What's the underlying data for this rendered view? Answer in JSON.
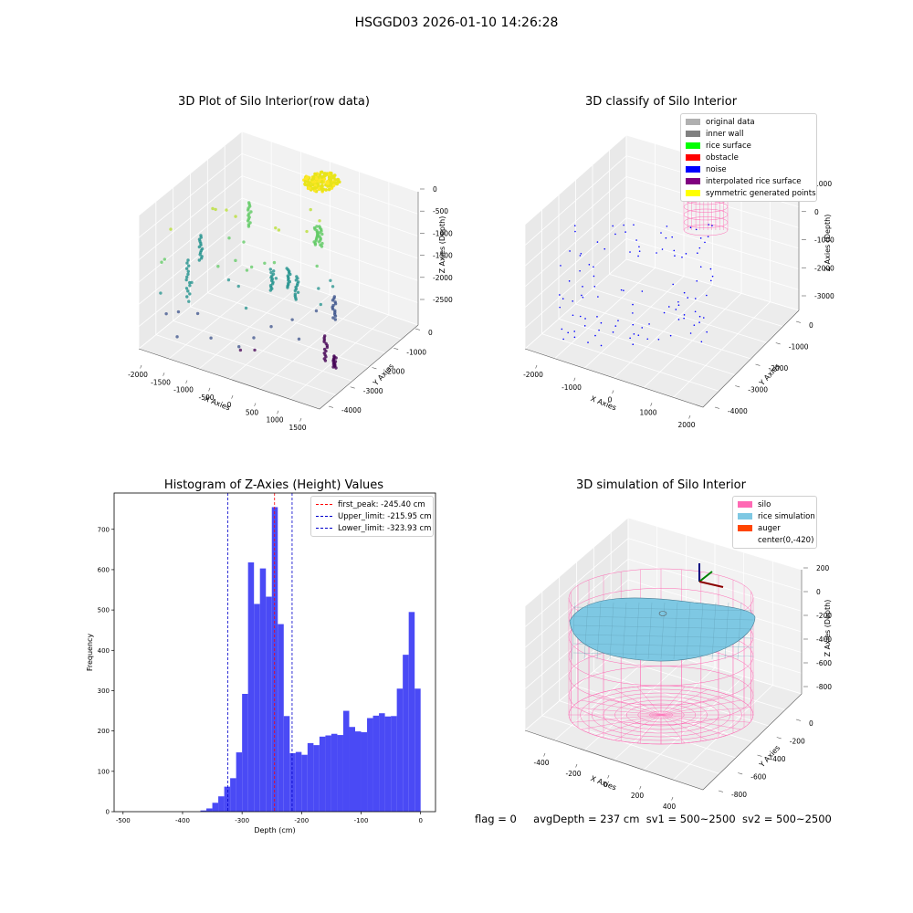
{
  "figure": {
    "suptitle": "HSGGD03 2026-01-10 14:26:28",
    "footer": {
      "flag": "flag = 0",
      "avg": "avgDepth = 237 cm",
      "sv1": "sv1 = 500~2500",
      "sv2": "sv2 = 500~2500"
    }
  },
  "chart_data": [
    {
      "type": "scatter",
      "projection": "3d",
      "title": "3D Plot of Silo Interior(row data)",
      "xlabel": "X Axies",
      "ylabel": "Y Axies",
      "zlabel": "Z Axies (Depth)",
      "xticks": [
        "-2000",
        "-1500",
        "-1000",
        "-500",
        "0",
        "500",
        "1000",
        "1500"
      ],
      "yticks": [
        "0",
        "-1000",
        "-2000",
        "-3000",
        "-4000"
      ],
      "zticks": [
        "0",
        "-500",
        "-1000",
        "-1500",
        "-2000",
        "-2500"
      ],
      "colormap": "viridis"
    },
    {
      "type": "scatter",
      "projection": "3d",
      "title": "3D classify of Silo Interior",
      "xlabel": "X Axies",
      "ylabel": "Y Axies",
      "zlabel": "Z Axies (Depth)",
      "xticks": [
        "-2000",
        "-1000",
        "0",
        "1000",
        "2000"
      ],
      "yticks": [
        "0",
        "-1000",
        "-2000",
        "-3000",
        "-4000"
      ],
      "zticks": [
        "1000",
        "0",
        "-1000",
        "-2000",
        "-3000"
      ],
      "legend": [
        {
          "label": "original data",
          "color": "#b0b0b0"
        },
        {
          "label": "inner wall",
          "color": "#808080"
        },
        {
          "label": "rice surface",
          "color": "#00ff00"
        },
        {
          "label": "obstacle",
          "color": "#ff0000"
        },
        {
          "label": "noise",
          "color": "#0000ff"
        },
        {
          "label": "interpolated rice surface",
          "color": "#800080"
        },
        {
          "label": "symmetric generated points",
          "color": "#ffff00"
        }
      ]
    },
    {
      "type": "bar",
      "title": "Histogram of Z-Axies (Height) Values",
      "xlabel": "Depth (cm)",
      "ylabel": "Frequency",
      "xlim": [
        -515,
        25
      ],
      "ylim": [
        0,
        790
      ],
      "xticks": [
        -500,
        -400,
        -300,
        -200,
        -100,
        0
      ],
      "yticks": [
        0,
        100,
        200,
        300,
        400,
        500,
        600,
        700
      ],
      "bar_color": "#4a4af5",
      "bin_width": 10,
      "bins": [
        [
          -360,
          3
        ],
        [
          -350,
          8
        ],
        [
          -340,
          22
        ],
        [
          -330,
          38
        ],
        [
          -320,
          62
        ],
        [
          -310,
          83
        ],
        [
          -300,
          147
        ],
        [
          -290,
          292
        ],
        [
          -280,
          618
        ],
        [
          -270,
          515
        ],
        [
          -260,
          603
        ],
        [
          -250,
          533
        ],
        [
          -240,
          755
        ],
        [
          -230,
          465
        ],
        [
          -220,
          237
        ],
        [
          -210,
          145
        ],
        [
          -200,
          148
        ],
        [
          -190,
          141
        ],
        [
          -180,
          170
        ],
        [
          -170,
          165
        ],
        [
          -160,
          186
        ],
        [
          -150,
          189
        ],
        [
          -140,
          193
        ],
        [
          -130,
          190
        ],
        [
          -120,
          250
        ],
        [
          -110,
          210
        ],
        [
          -100,
          199
        ],
        [
          -90,
          197
        ],
        [
          -80,
          232
        ],
        [
          -70,
          238
        ],
        [
          -60,
          244
        ],
        [
          -50,
          236
        ],
        [
          -40,
          237
        ],
        [
          -30,
          305
        ],
        [
          -20,
          389
        ],
        [
          -10,
          495
        ],
        [
          0,
          305
        ]
      ],
      "vlines": [
        {
          "x": -245.4,
          "color": "#ff0000",
          "label": "first_peak: -245.40 cm"
        },
        {
          "x": -215.95,
          "color": "#0000cc",
          "label": "Upper_limit: -215.95 cm"
        },
        {
          "x": -323.93,
          "color": "#0000cc",
          "label": "Lower_limit: -323.93 cm"
        }
      ]
    },
    {
      "type": "surface",
      "projection": "3d",
      "title": "3D simulation of Silo Interior",
      "xlabel": "X Axies",
      "ylabel": "Y Axies",
      "zlabel": "Z Axies (Depth)",
      "xticks": [
        "-400",
        "-200",
        "0",
        "200",
        "400"
      ],
      "yticks": [
        "0",
        "-200",
        "-400",
        "-600",
        "-800"
      ],
      "zticks": [
        "200",
        "0",
        "-200",
        "-400",
        "-600",
        "-800"
      ],
      "legend": [
        {
          "label": "silo",
          "color": "#ff69b4"
        },
        {
          "label": "rice simulation",
          "color": "#7ec8e3"
        },
        {
          "label": "auger",
          "color": "#ff4500"
        },
        {
          "label": "center(0,-420)",
          "color": ""
        }
      ]
    }
  ]
}
